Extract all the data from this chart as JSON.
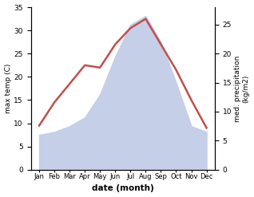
{
  "months": [
    "Jan",
    "Feb",
    "Mar",
    "Apr",
    "May",
    "Jun",
    "Jul",
    "Aug",
    "Sep",
    "Oct",
    "Nov",
    "Dec"
  ],
  "temp": [
    9.5,
    14.5,
    18.5,
    22.5,
    22.0,
    27.0,
    30.5,
    32.5,
    27.0,
    21.5,
    15.0,
    9.0
  ],
  "precip": [
    6.0,
    6.5,
    7.5,
    9.0,
    13.0,
    19.5,
    25.0,
    26.5,
    22.0,
    15.0,
    7.5,
    6.5
  ],
  "temp_color": "#c0504d",
  "precip_fill_color": "#c5cfe8",
  "temp_ylim": [
    0,
    35
  ],
  "precip_ylim": [
    0,
    28
  ],
  "temp_yticks": [
    0,
    5,
    10,
    15,
    20,
    25,
    30,
    35
  ],
  "precip_yticks": [
    0,
    5,
    10,
    15,
    20,
    25
  ],
  "ylabel_left": "max temp (C)",
  "ylabel_right": "med. precipitation\n(kg/m2)",
  "xlabel": "date (month)"
}
